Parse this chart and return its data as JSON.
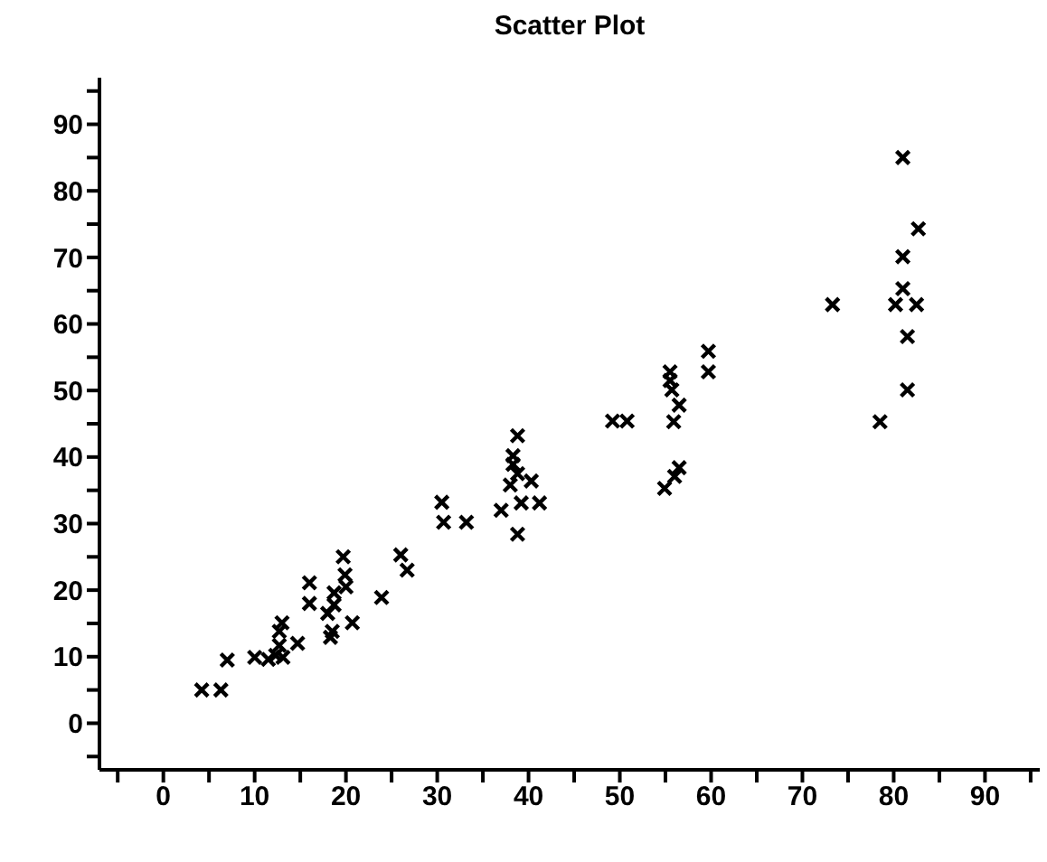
{
  "chart_data": {
    "type": "scatter",
    "title": "Scatter Plot",
    "x": [
      4.2,
      6.3,
      7.0,
      10.0,
      11.5,
      12.3,
      13.1,
      12.7,
      13.0,
      12.7,
      14.7,
      16.0,
      16.0,
      18.0,
      18.3,
      18.5,
      18.7,
      18.7,
      19.7,
      19.9,
      20.0,
      20.7,
      23.9,
      26.0,
      26.7,
      30.5,
      30.7,
      33.2,
      37.0,
      38.8,
      38.3,
      38.3,
      38.0,
      38.8,
      40.3,
      39.2,
      41.2,
      38.8,
      49.2,
      50.8,
      55.9,
      55.5,
      55.5,
      55.7,
      56.5,
      59.7,
      59.7,
      56.5,
      56.0,
      54.9,
      73.3,
      81.0,
      81.0,
      80.2,
      82.5,
      81.5,
      81.5,
      78.5,
      81.0,
      82.7
    ],
    "values": [
      5.0,
      5.0,
      9.5,
      9.9,
      9.6,
      10.2,
      9.9,
      11.7,
      15.1,
      13.8,
      12.0,
      21.1,
      18.0,
      16.5,
      12.9,
      13.8,
      17.8,
      19.6,
      25.0,
      22.3,
      20.5,
      15.1,
      18.9,
      25.3,
      23.0,
      33.2,
      30.2,
      30.2,
      32.0,
      43.2,
      40.2,
      38.9,
      35.8,
      37.5,
      36.4,
      33.1,
      33.1,
      28.4,
      45.4,
      45.4,
      45.3,
      52.8,
      51.5,
      50.1,
      47.8,
      55.9,
      52.8,
      38.4,
      37.1,
      35.3,
      62.9,
      70.1,
      65.3,
      62.9,
      62.9,
      58.1,
      50.1,
      45.3,
      85.0,
      74.3
    ],
    "color": "#000000",
    "marker": "cross",
    "xlim": [
      -7,
      96
    ],
    "ylim": [
      -7,
      97
    ],
    "xticks": [
      {
        "value": -5,
        "label": null
      },
      0,
      {
        "value": 5,
        "label": null
      },
      10,
      {
        "value": 15,
        "label": null
      },
      20,
      {
        "value": 25,
        "label": null
      },
      30,
      {
        "value": 35,
        "label": null
      },
      40,
      {
        "value": 45,
        "label": null
      },
      50,
      {
        "value": 55,
        "label": null
      },
      60,
      {
        "value": 65,
        "label": null
      },
      70,
      {
        "value": 75,
        "label": null
      },
      80,
      {
        "value": 85,
        "label": null
      },
      90,
      {
        "value": 95,
        "label": null
      }
    ],
    "yticks": [
      {
        "value": -5,
        "label": null
      },
      0,
      {
        "value": 5,
        "label": null
      },
      10,
      {
        "value": 15,
        "label": null
      },
      20,
      {
        "value": 25,
        "label": null
      },
      30,
      {
        "value": 35,
        "label": null
      },
      40,
      {
        "value": 45,
        "label": null
      },
      50,
      {
        "value": 55,
        "label": null
      },
      60,
      {
        "value": 65,
        "label": null
      },
      70,
      {
        "value": 75,
        "label": null
      },
      80,
      {
        "value": 85,
        "label": null
      },
      90,
      {
        "value": 95,
        "label": null
      }
    ],
    "grid": false,
    "legend": false
  }
}
